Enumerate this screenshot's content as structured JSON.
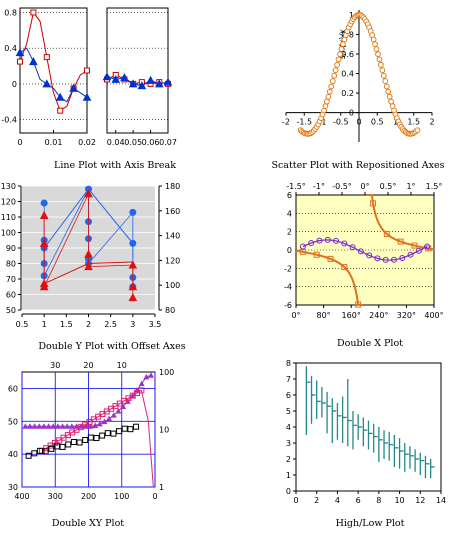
{
  "charts": [
    {
      "caption": "Line Plot with Axis Break",
      "type": "line",
      "x_ranges": [
        [
          0,
          0.02
        ],
        [
          0.035,
          0.07
        ]
      ],
      "x_ticks": [
        "0",
        "0.01",
        "0.02",
        "0.04",
        "0.05",
        "0.06",
        "0.07"
      ],
      "y_ticks": [
        "-0.4",
        "0",
        "0.4",
        "0.8"
      ],
      "ylim": [
        -0.55,
        0.85
      ],
      "series": [
        {
          "color": "#cc0000",
          "marker": "square",
          "x": [
            0,
            0.002,
            0.004,
            0.006,
            0.008,
            0.01,
            0.012,
            0.014,
            0.016,
            0.018,
            0.02,
            0.035,
            0.04,
            0.045,
            0.05,
            0.055,
            0.06,
            0.065,
            0.07
          ],
          "y": [
            0.25,
            0.45,
            0.8,
            0.7,
            0.3,
            -0.1,
            -0.3,
            -0.25,
            -0.05,
            0.1,
            0.15,
            0.05,
            0.1,
            0.05,
            0.0,
            0.02,
            0.0,
            0.02,
            0.0
          ]
        },
        {
          "color": "#0033cc",
          "marker": "triangle",
          "x": [
            0,
            0.002,
            0.004,
            0.006,
            0.008,
            0.01,
            0.012,
            0.014,
            0.016,
            0.018,
            0.02,
            0.035,
            0.04,
            0.045,
            0.05,
            0.055,
            0.06,
            0.065,
            0.07
          ],
          "y": [
            0.35,
            0.4,
            0.25,
            0.05,
            0.0,
            -0.05,
            -0.15,
            -0.2,
            -0.05,
            -0.1,
            -0.15,
            0.08,
            0.05,
            0.07,
            0.0,
            -0.02,
            0.04,
            0.0,
            0.02
          ]
        }
      ]
    },
    {
      "caption": "Scatter Plot with Repositioned Axes",
      "type": "scatter",
      "axis_label": "sin(x)/x",
      "x_ticks": [
        "-2",
        "-1.5",
        "-1",
        "-0.5",
        "0",
        "0.5",
        "1",
        "1.5",
        "2"
      ],
      "y_ticks": [
        "0",
        "0.2",
        "0.4",
        "0.6",
        "0.8",
        "1"
      ],
      "xlim": [
        -2,
        2
      ],
      "ylim": [
        -0.3,
        1.05
      ],
      "color": "#e07000"
    },
    {
      "caption": "Double Y Plot with Offset Axes",
      "type": "scatter",
      "x_ticks": [
        "0.5",
        "1",
        "1.5",
        "2",
        "2.5",
        "3",
        "3.5"
      ],
      "y_left_ticks": [
        "50",
        "60",
        "70",
        "80",
        "90",
        "100",
        "110",
        "120",
        "130"
      ],
      "y_right_ticks": [
        "80",
        "100",
        "120",
        "140",
        "160",
        "180"
      ],
      "xlim": [
        0.5,
        3.5
      ],
      "ylim_left": [
        50,
        130
      ],
      "ylim_right": [
        80,
        180
      ],
      "series": [
        {
          "color": "#2266ee",
          "marker": "circle",
          "x": [
            1,
            1,
            1,
            1,
            1,
            2,
            2,
            2,
            2,
            2,
            3,
            3,
            3,
            3
          ],
          "y": [
            119,
            95,
            90,
            80,
            72,
            128,
            107,
            96,
            83,
            80,
            113,
            93,
            71,
            65
          ],
          "line": [
            [
              1,
              90
            ],
            [
              2,
              128
            ],
            [
              3,
              93
            ]
          ]
        },
        {
          "color": "#dd1111",
          "marker": "triangle",
          "x": [
            1,
            1,
            1,
            1,
            2,
            2,
            2,
            3,
            3,
            3
          ],
          "y": [
            111,
            93,
            67,
            65,
            125,
            86,
            78,
            79,
            65,
            58
          ],
          "line": [
            [
              1,
              67
            ],
            [
              2,
              80
            ],
            [
              3,
              81
            ]
          ]
        }
      ]
    },
    {
      "caption": "Double X Plot",
      "type": "line",
      "x_bottom_ticks": [
        "0°",
        "80°",
        "160°",
        "240°",
        "320°",
        "400°"
      ],
      "x_top_ticks": [
        "-1.5°",
        "-1°",
        "-0.5°",
        "0°",
        "0.5°",
        "1°",
        "1.5°"
      ],
      "y_ticks": [
        "-6",
        "-4",
        "-2",
        "0",
        "2",
        "4",
        "6"
      ],
      "ylim": [
        -6,
        6
      ],
      "xlim_bottom": [
        0,
        400
      ],
      "xlim_top": [
        -1.5,
        1.5
      ],
      "colors": {
        "tan": "#e07020",
        "sin": "#7a22cc",
        "bg": "#ffffc0"
      }
    },
    {
      "caption": "Double XY Plot",
      "type": "line",
      "x_bottom_ticks": [
        "400",
        "300",
        "200",
        "100",
        "0"
      ],
      "x_top_ticks": [
        "30",
        "20",
        "10"
      ],
      "y_left_ticks": [
        "30",
        "40",
        "50",
        "60"
      ],
      "y_right_ticks": [
        "1",
        "10",
        "100"
      ],
      "colors": {
        "grid": "#1a1aff",
        "purple": "#9933cc",
        "pink": "#dd2277",
        "black": "#000000"
      }
    },
    {
      "caption": "High/Low Plot",
      "type": "bar",
      "x_ticks": [
        "0",
        "2",
        "4",
        "6",
        "8",
        "10",
        "12",
        "14"
      ],
      "y_ticks": [
        "0",
        "1",
        "2",
        "3",
        "4",
        "5",
        "6",
        "7",
        "8"
      ],
      "xlim": [
        0,
        14
      ],
      "ylim": [
        0,
        8
      ],
      "color": "#228888",
      "x": [
        1,
        1.5,
        2,
        2.5,
        3,
        3.5,
        4,
        4.5,
        5,
        5.5,
        6,
        6.5,
        7,
        7.5,
        8,
        8.5,
        9,
        9.5,
        10,
        10.5,
        11,
        11.5,
        12,
        12.5,
        13
      ],
      "high": [
        7.8,
        7.2,
        6.9,
        6.5,
        6.2,
        5.8,
        5.5,
        5.9,
        7.0,
        5.0,
        4.8,
        4.6,
        4.4,
        4.2,
        4.0,
        3.8,
        3.7,
        3.5,
        3.3,
        3.0,
        2.8,
        2.6,
        2.4,
        2.2,
        2.0
      ],
      "low": [
        3.5,
        4.2,
        4.5,
        4.6,
        3.6,
        3.0,
        3.2,
        3.0,
        2.8,
        2.6,
        3.2,
        2.8,
        2.6,
        2.4,
        1.8,
        2.0,
        1.9,
        1.5,
        1.4,
        1.2,
        1.4,
        1.2,
        1.0,
        0.8,
        0.8
      ],
      "close": [
        6.8,
        6.0,
        5.6,
        5.5,
        5.3,
        5.0,
        4.7,
        4.6,
        4.4,
        4.1,
        4.0,
        3.8,
        3.6,
        3.4,
        3.2,
        3.0,
        2.9,
        2.7,
        2.5,
        2.3,
        2.2,
        2.0,
        1.9,
        1.7,
        1.5
      ]
    }
  ]
}
